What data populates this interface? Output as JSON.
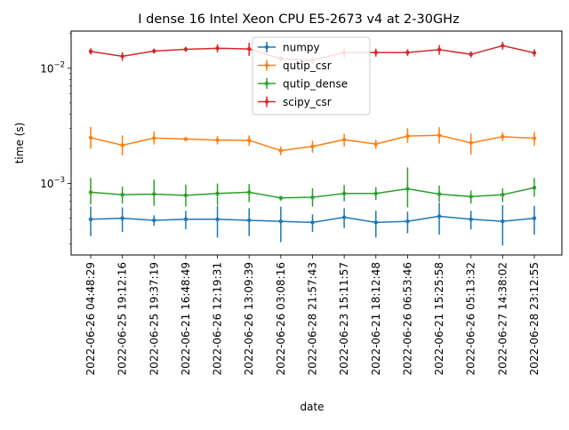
{
  "chart_data": {
    "type": "line",
    "title": "I dense 16 Intel Xeon CPU E5-2673 v4 at 2-30GHz",
    "xlabel": "date",
    "ylabel": "time (s)",
    "yscale": "log",
    "ylim": [
      0.00024,
      0.021
    ],
    "yticks": [
      {
        "value": 0.001,
        "base": "10",
        "exp": "−3"
      },
      {
        "value": 0.01,
        "base": "10",
        "exp": "−2"
      }
    ],
    "grid": false,
    "legend_position": "top-center",
    "categories": [
      "2022-06-26 04:48:29",
      "2022-06-25 19:12:16",
      "2022-06-25 19:37:19",
      "2022-06-21 16:48:49",
      "2022-06-26 12:19:31",
      "2022-06-26 13:09:39",
      "2022-06-26 03:08:16",
      "2022-06-28 21:57:43",
      "2022-06-23 15:11:57",
      "2022-06-21 18:12:48",
      "2022-06-26 06:53:46",
      "2022-06-21 15:25:58",
      "2022-06-26 05:13:32",
      "2022-06-27 14:38:02",
      "2022-06-28 23:12:55"
    ],
    "series": [
      {
        "name": "numpy",
        "color": "#1f77b4",
        "values": [
          0.00049,
          0.0005,
          0.00048,
          0.00049,
          0.00049,
          0.00048,
          0.00047,
          0.00046,
          0.00051,
          0.00046,
          0.00047,
          0.00052,
          0.00049,
          0.00047,
          0.0005
        ],
        "lower": [
          0.00035,
          0.00038,
          0.00043,
          0.0004,
          0.00034,
          0.00035,
          0.00031,
          0.00038,
          0.00041,
          0.00034,
          0.00037,
          0.00036,
          0.0004,
          0.00029,
          0.00036
        ],
        "upper": [
          0.00063,
          0.00062,
          0.00053,
          0.00058,
          0.00064,
          0.00061,
          0.00063,
          0.00054,
          0.00061,
          0.00058,
          0.00057,
          0.00068,
          0.00058,
          0.00065,
          0.00064
        ]
      },
      {
        "name": "qutip_csr",
        "color": "#ff7f0e",
        "values": [
          0.0025,
          0.00215,
          0.00248,
          0.00243,
          0.00238,
          0.00237,
          0.00193,
          0.0021,
          0.0024,
          0.0022,
          0.00258,
          0.00262,
          0.00225,
          0.00255,
          0.00247
        ],
        "lower": [
          0.002,
          0.00176,
          0.00218,
          0.00233,
          0.00218,
          0.00212,
          0.00176,
          0.00185,
          0.0021,
          0.002,
          0.00225,
          0.00222,
          0.00178,
          0.00233,
          0.00213
        ],
        "upper": [
          0.0031,
          0.00262,
          0.00283,
          0.00253,
          0.00258,
          0.00262,
          0.0021,
          0.00235,
          0.0027,
          0.0024,
          0.00302,
          0.00308,
          0.00272,
          0.00277,
          0.00281
        ]
      },
      {
        "name": "qutip_dense",
        "color": "#2ca02c",
        "values": [
          0.00084,
          0.0008,
          0.00081,
          0.00079,
          0.00082,
          0.00084,
          0.00075,
          0.00076,
          0.00082,
          0.00082,
          0.0009,
          0.00081,
          0.00077,
          0.0008,
          0.00092
        ],
        "lower": [
          0.00066,
          0.00067,
          0.00064,
          0.00063,
          0.00065,
          0.00069,
          0.00071,
          0.00063,
          0.0007,
          0.00072,
          0.00062,
          0.00069,
          0.00067,
          0.00069,
          0.00077
        ],
        "upper": [
          0.00112,
          0.00094,
          0.00108,
          0.00098,
          0.001,
          0.00099,
          0.00078,
          0.00091,
          0.00097,
          0.00093,
          0.00138,
          0.00096,
          0.00087,
          0.00091,
          0.00112
        ]
      },
      {
        "name": "scipy_csr",
        "color": "#d62728",
        "values": [
          0.014,
          0.0127,
          0.0141,
          0.0146,
          0.0149,
          0.0147,
          0.0121,
          0.0117,
          0.0137,
          0.0137,
          0.0137,
          0.0145,
          0.0132,
          0.0157,
          0.0136
        ],
        "lower": [
          0.0131,
          0.0116,
          0.0134,
          0.0139,
          0.0137,
          0.0128,
          0.0114,
          0.0109,
          0.0123,
          0.0126,
          0.0128,
          0.0131,
          0.0124,
          0.0145,
          0.0126
        ],
        "upper": [
          0.0149,
          0.0138,
          0.0148,
          0.0153,
          0.0161,
          0.0166,
          0.0128,
          0.0125,
          0.0151,
          0.0148,
          0.0146,
          0.0159,
          0.014,
          0.0169,
          0.0146
        ]
      }
    ]
  }
}
